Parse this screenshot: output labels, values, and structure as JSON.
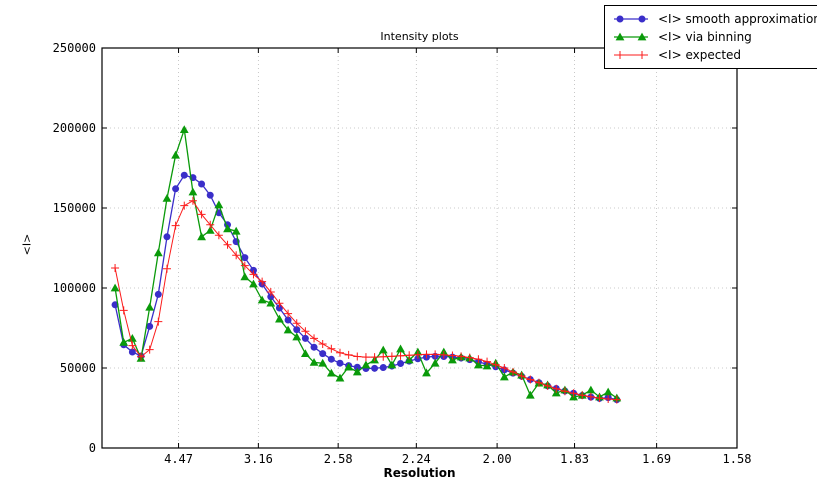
{
  "title": "Intensity plots",
  "xlabel": "Resolution",
  "ylabel": "<I>",
  "colors": {
    "smooth": "#3a2ec9",
    "binning": "#0a9a0a",
    "expected": "#fb1b1b",
    "grid": "#bbbbbb",
    "axis": "#000000",
    "background": "#ffffff"
  },
  "legend": [
    {
      "label": "<I> smooth approximation",
      "marker": "circle",
      "color": "#3a2ec9"
    },
    {
      "label": "<I> via binning",
      "marker": "triangle",
      "color": "#0a9a0a"
    },
    {
      "label": "<I> expected",
      "marker": "plus",
      "color": "#fb1b1b"
    }
  ],
  "chart_data": {
    "type": "line",
    "title": "Intensity plots",
    "xlabel": "Resolution",
    "ylabel": "<I>",
    "grid": "dotted",
    "legend_position": "upper right, outside top",
    "x_axis": {
      "unit": "1/d^2",
      "min": 0.002,
      "max": 0.400577,
      "tick_d_values": [
        4.47,
        3.16,
        2.58,
        2.24,
        2.0,
        1.83,
        1.69,
        1.58
      ],
      "tick_labels": [
        "4.47",
        "3.16",
        "2.58",
        "2.24",
        "2.00",
        "1.83",
        "1.69",
        "1.58"
      ]
    },
    "y_axis": {
      "min": 0,
      "max": 250000,
      "ticks": [
        0,
        50000,
        100000,
        150000,
        200000,
        250000
      ],
      "tick_labels": [
        "0",
        "50000",
        "100000",
        "150000",
        "200000",
        "250000"
      ]
    },
    "x": [
      0.0102,
      0.01563,
      0.02106,
      0.02649,
      0.03192,
      0.03735,
      0.04278,
      0.04821,
      0.05364,
      0.05907,
      0.0645,
      0.06993,
      0.07536,
      0.08079,
      0.08622,
      0.09165,
      0.09708,
      0.10251,
      0.10794,
      0.11337,
      0.1188,
      0.12423,
      0.12966,
      0.13509,
      0.14052,
      0.14595,
      0.15138,
      0.15681,
      0.16224,
      0.16767,
      0.1731,
      0.17853,
      0.18396,
      0.18939,
      0.19482,
      0.20025,
      0.20568,
      0.21111,
      0.21654,
      0.22197,
      0.2274,
      0.23283,
      0.23826,
      0.24369,
      0.24912,
      0.25455,
      0.25998,
      0.26541,
      0.27084,
      0.27627,
      0.2817,
      0.28713,
      0.29256,
      0.29799,
      0.30342,
      0.30885,
      0.31428,
      0.31971,
      0.32514
    ],
    "series": [
      {
        "name": "<I> smooth approximation",
        "marker": "circle",
        "color": "#3a2ec9",
        "values": [
          89500,
          64500,
          60000,
          57500,
          76000,
          96000,
          132000,
          162000,
          170500,
          169000,
          165000,
          158000,
          147000,
          139500,
          129000,
          119000,
          111000,
          102500,
          94500,
          87500,
          80000,
          74000,
          68500,
          63000,
          59000,
          55500,
          53000,
          51500,
          50500,
          49700,
          49800,
          50300,
          51200,
          52800,
          54300,
          55800,
          56800,
          57300,
          57200,
          56800,
          56200,
          55200,
          53800,
          52300,
          50800,
          48800,
          46800,
          44800,
          42800,
          40800,
          38800,
          37200,
          35600,
          34200,
          32800,
          31800,
          31000,
          31500,
          30200
        ]
      },
      {
        "name": "<I> via binning",
        "marker": "triangle",
        "color": "#0a9a0a",
        "values": [
          100000,
          66000,
          68500,
          56000,
          88000,
          122000,
          156000,
          183000,
          199000,
          160000,
          132000,
          136000,
          152000,
          137000,
          135500,
          107000,
          102500,
          92500,
          90600,
          80600,
          73750,
          69400,
          59000,
          53500,
          53000,
          46800,
          43700,
          50600,
          47500,
          51900,
          55000,
          61250,
          51900,
          61900,
          55000,
          60000,
          46900,
          53000,
          60000,
          55000,
          56900,
          56250,
          51900,
          51250,
          53000,
          44400,
          47500,
          45600,
          33000,
          40600,
          39400,
          34400,
          36250,
          31900,
          33000,
          36250,
          31900,
          35000,
          31250
        ]
      },
      {
        "name": "<I> expected",
        "marker": "plus",
        "color": "#fb1b1b",
        "values": [
          112500,
          86000,
          64000,
          57000,
          61500,
          79000,
          112000,
          139000,
          151500,
          154500,
          146000,
          139500,
          133000,
          127000,
          120500,
          114000,
          108500,
          104000,
          97500,
          90500,
          84000,
          78000,
          73000,
          68500,
          65000,
          62000,
          59500,
          58200,
          57200,
          56800,
          56800,
          57000,
          57300,
          57600,
          58000,
          58300,
          58500,
          58500,
          58200,
          57800,
          57300,
          56500,
          55500,
          54000,
          52000,
          50000,
          47500,
          45000,
          42800,
          40800,
          38800,
          37000,
          35500,
          34200,
          33000,
          32000,
          31200,
          30600,
          30200
        ]
      }
    ]
  }
}
